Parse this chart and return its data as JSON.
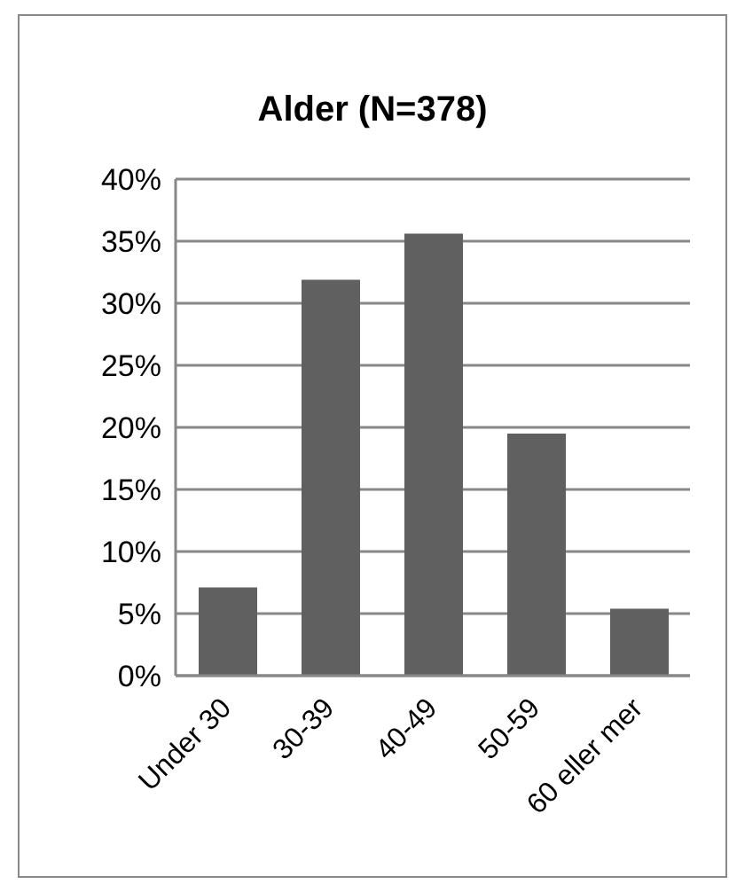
{
  "chart_data": {
    "type": "bar",
    "title": "Alder (N=378)",
    "categories": [
      "Under 30",
      "30-39",
      "40-49",
      "50-59",
      "60 eller mer"
    ],
    "values": [
      7.1,
      31.9,
      35.6,
      19.5,
      5.4
    ],
    "color": "#606060",
    "ylim": [
      0,
      40
    ],
    "yticks": [
      {
        "value": 0,
        "label": "0%"
      },
      {
        "value": 5,
        "label": "5%"
      },
      {
        "value": 10,
        "label": "10%"
      },
      {
        "value": 15,
        "label": "15%"
      },
      {
        "value": 20,
        "label": "20%"
      },
      {
        "value": 25,
        "label": "25%"
      },
      {
        "value": 30,
        "label": "30%"
      },
      {
        "value": 35,
        "label": "35%"
      },
      {
        "value": 40,
        "label": "40%"
      }
    ],
    "grid": "y",
    "legend": false
  }
}
